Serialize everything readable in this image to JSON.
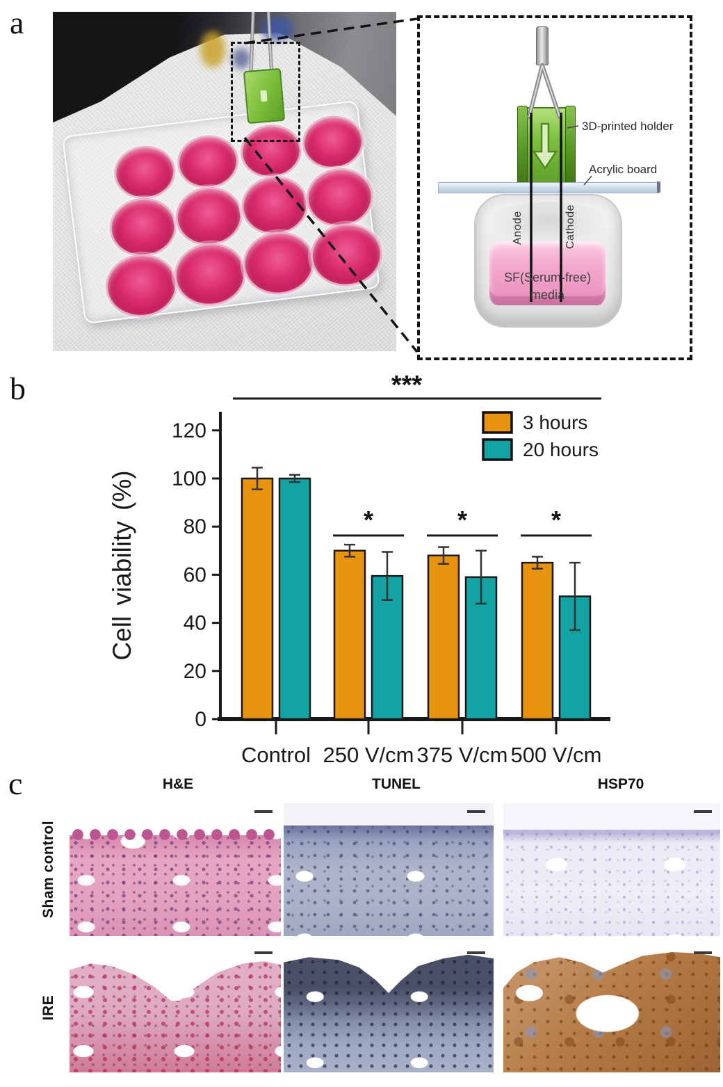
{
  "panels": {
    "a": "a",
    "b": "b",
    "c": "c"
  },
  "panel_a": {
    "schematic": {
      "holder_label": "3D-printed holder",
      "board_label": "Acrylic board",
      "anode_label": "Anode",
      "cathode_label": "Cathode",
      "media_label": "SF(Serum-free)",
      "media_label2": "media",
      "colors": {
        "holder_green": "#7CBF3F",
        "media_pink": "#F2A6CC",
        "board_blue": "#D9E4F2",
        "photo_well_media": "#D9276B"
      }
    }
  },
  "chart_data": {
    "type": "bar",
    "title": "",
    "categories": [
      "Control",
      "250 V/cm",
      "375 V/cm",
      "500 V/cm"
    ],
    "series": [
      {
        "name": "3 hours",
        "color": "#E8930E",
        "values": [
          100,
          70,
          68,
          65
        ],
        "errors": [
          4.5,
          2.5,
          3.5,
          2.5
        ]
      },
      {
        "name": "20 hours",
        "color": "#14A3A3",
        "values": [
          100,
          59.5,
          59,
          51
        ],
        "errors": [
          1.5,
          10,
          11,
          14
        ]
      }
    ],
    "xlabel": "",
    "ylabel": "Cell viability (%)",
    "ylim": [
      0,
      135
    ],
    "yticks": [
      0,
      20,
      40,
      60,
      80,
      100,
      120
    ],
    "grid": false,
    "legend_position": "top-right",
    "significance": {
      "overall": {
        "label": "***",
        "span": "all"
      },
      "groups": [
        {
          "category": "250 V/cm",
          "label": "*"
        },
        {
          "category": "375 V/cm",
          "label": "*"
        },
        {
          "category": "500 V/cm",
          "label": "*"
        }
      ]
    }
  },
  "panel_c": {
    "columns": [
      "H&E",
      "TUNEL",
      "HSP70"
    ],
    "rows": [
      "Sham control",
      "IRE"
    ]
  }
}
